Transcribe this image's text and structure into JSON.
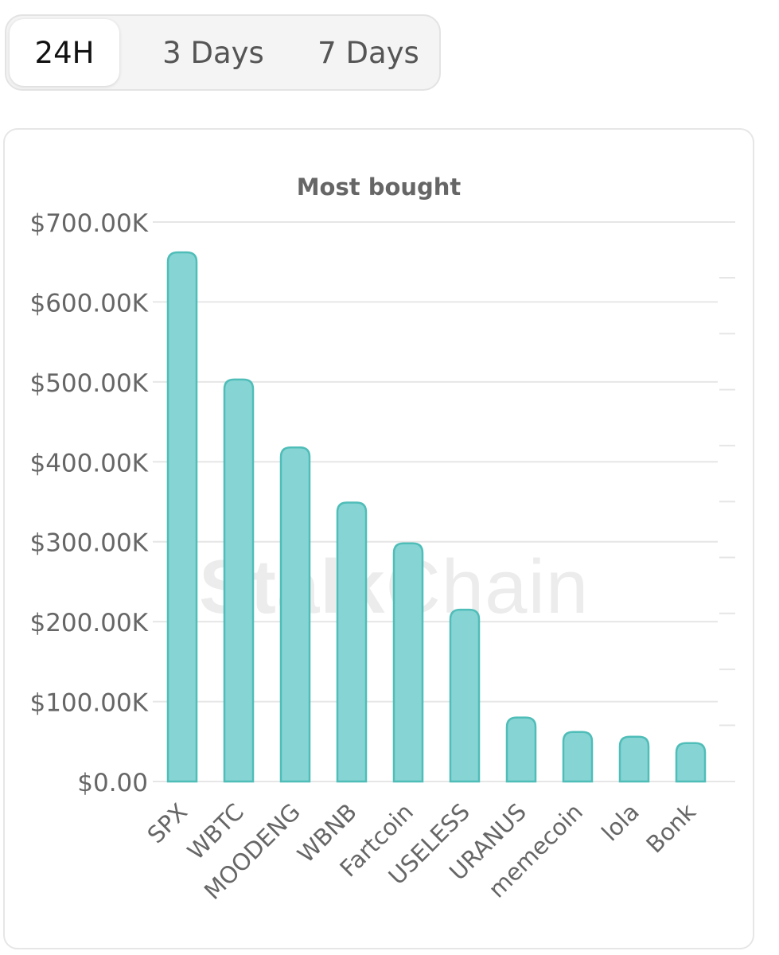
{
  "tabs": [
    {
      "label": "24H",
      "active": true
    },
    {
      "label": "3 Days",
      "active": false
    },
    {
      "label": "7 Days",
      "active": false
    }
  ],
  "watermark": {
    "bold_part": "Stalk",
    "light_part": "Chain"
  },
  "colors": {
    "bar_fill": "#86d5d4",
    "bar_stroke": "#4fbdb8",
    "grid": "#e6e6e6",
    "axis_text": "#666666",
    "title_text": "#666666"
  },
  "chart_data": {
    "type": "bar",
    "title": "Most bought",
    "categories": [
      "SPX",
      "WBTC",
      "MOODENG",
      "WBNB",
      "Fartcoin",
      "USELESS",
      "URANUS",
      "memecoin",
      "lola",
      "Bonk"
    ],
    "values": [
      662000,
      503000,
      418000,
      349000,
      298000,
      215000,
      80000,
      62000,
      56000,
      48000
    ],
    "y_ticks": [
      0,
      100000,
      200000,
      300000,
      400000,
      500000,
      600000,
      700000
    ],
    "y_tick_labels": [
      "$0.00",
      "$100.00K",
      "$200.00K",
      "$300.00K",
      "$400.00K",
      "$500.00K",
      "$600.00K",
      "$700.00K"
    ],
    "ylim": [
      0,
      700000
    ],
    "grid": true,
    "legend": "none"
  }
}
